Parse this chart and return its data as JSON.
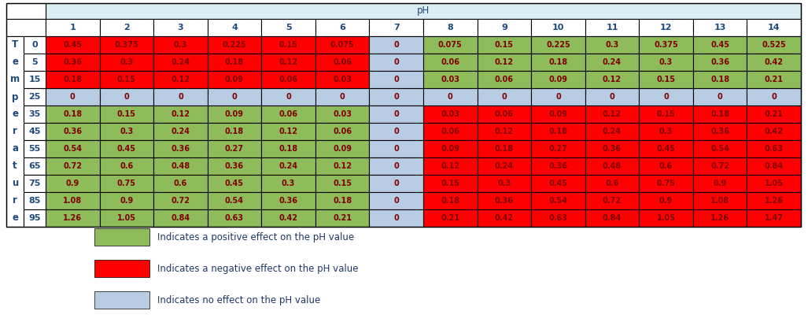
{
  "col_headers": [
    "1",
    "2",
    "3",
    "4",
    "5",
    "6",
    "7",
    "8",
    "9",
    "10",
    "11",
    "12",
    "13",
    "14"
  ],
  "row_headers": [
    "0",
    "5",
    "15",
    "25",
    "35",
    "45",
    "55",
    "65",
    "75",
    "85",
    "95"
  ],
  "values": [
    [
      0.45,
      0.375,
      0.3,
      0.225,
      0.15,
      0.075,
      0,
      0.075,
      0.15,
      0.225,
      0.3,
      0.375,
      0.45,
      0.525
    ],
    [
      0.36,
      0.3,
      0.24,
      0.18,
      0.12,
      0.06,
      0,
      0.06,
      0.12,
      0.18,
      0.24,
      0.3,
      0.36,
      0.42
    ],
    [
      0.18,
      0.15,
      0.12,
      0.09,
      0.06,
      0.03,
      0,
      0.03,
      0.06,
      0.09,
      0.12,
      0.15,
      0.18,
      0.21
    ],
    [
      0,
      0,
      0,
      0,
      0,
      0,
      0,
      0,
      0,
      0,
      0,
      0,
      0,
      0
    ],
    [
      0.18,
      0.15,
      0.12,
      0.09,
      0.06,
      0.03,
      0,
      0.03,
      0.06,
      0.09,
      0.12,
      0.15,
      0.18,
      0.21
    ],
    [
      0.36,
      0.3,
      0.24,
      0.18,
      0.12,
      0.06,
      0,
      0.06,
      0.12,
      0.18,
      0.24,
      0.3,
      0.36,
      0.42
    ],
    [
      0.54,
      0.45,
      0.36,
      0.27,
      0.18,
      0.09,
      0,
      0.09,
      0.18,
      0.27,
      0.36,
      0.45,
      0.54,
      0.63
    ],
    [
      0.72,
      0.6,
      0.48,
      0.36,
      0.24,
      0.12,
      0,
      0.12,
      0.24,
      0.36,
      0.48,
      0.6,
      0.72,
      0.84
    ],
    [
      0.9,
      0.75,
      0.6,
      0.45,
      0.3,
      0.15,
      0,
      0.15,
      0.3,
      0.45,
      0.6,
      0.75,
      0.9,
      1.05
    ],
    [
      1.08,
      0.9,
      0.72,
      0.54,
      0.36,
      0.18,
      0,
      0.18,
      0.36,
      0.54,
      0.72,
      0.9,
      1.08,
      1.26
    ],
    [
      1.26,
      1.05,
      0.84,
      0.63,
      0.42,
      0.21,
      0,
      0.21,
      0.42,
      0.63,
      0.84,
      1.05,
      1.26,
      1.47
    ]
  ],
  "cell_colors": [
    [
      "red",
      "red",
      "red",
      "red",
      "red",
      "red",
      "lightblue",
      "green",
      "green",
      "green",
      "green",
      "green",
      "green",
      "green"
    ],
    [
      "red",
      "red",
      "red",
      "red",
      "red",
      "red",
      "lightblue",
      "green",
      "green",
      "green",
      "green",
      "green",
      "green",
      "green"
    ],
    [
      "red",
      "red",
      "red",
      "red",
      "red",
      "red",
      "lightblue",
      "green",
      "green",
      "green",
      "green",
      "green",
      "green",
      "green"
    ],
    [
      "lightblue",
      "lightblue",
      "lightblue",
      "lightblue",
      "lightblue",
      "lightblue",
      "lightblue",
      "lightblue",
      "lightblue",
      "lightblue",
      "lightblue",
      "lightblue",
      "lightblue",
      "lightblue"
    ],
    [
      "green",
      "green",
      "green",
      "green",
      "green",
      "green",
      "lightblue",
      "red",
      "red",
      "red",
      "red",
      "red",
      "red",
      "red"
    ],
    [
      "green",
      "green",
      "green",
      "green",
      "green",
      "green",
      "lightblue",
      "red",
      "red",
      "red",
      "red",
      "red",
      "red",
      "red"
    ],
    [
      "green",
      "green",
      "green",
      "green",
      "green",
      "green",
      "lightblue",
      "red",
      "red",
      "red",
      "red",
      "red",
      "red",
      "red"
    ],
    [
      "green",
      "green",
      "green",
      "green",
      "green",
      "green",
      "lightblue",
      "red",
      "red",
      "red",
      "red",
      "red",
      "red",
      "red"
    ],
    [
      "green",
      "green",
      "green",
      "green",
      "green",
      "green",
      "lightblue",
      "red",
      "red",
      "red",
      "red",
      "red",
      "red",
      "red"
    ],
    [
      "green",
      "green",
      "green",
      "green",
      "green",
      "green",
      "lightblue",
      "red",
      "red",
      "red",
      "red",
      "red",
      "red",
      "red"
    ],
    [
      "green",
      "green",
      "green",
      "green",
      "green",
      "green",
      "lightblue",
      "red",
      "red",
      "red",
      "red",
      "red",
      "red",
      "red"
    ]
  ],
  "color_map": {
    "red": "#FF0000",
    "green": "#8FBC5A",
    "lightblue": "#B8CCE4"
  },
  "temp_letters": [
    "T",
    "e",
    "m",
    "p",
    "e",
    "r",
    "a",
    "t",
    "u",
    "r",
    "e"
  ],
  "ph_label": "pH",
  "legend": [
    {
      "color": "#8FBC5A",
      "text": "Indicates a positive effect on the pH value"
    },
    {
      "color": "#FF0000",
      "text": "Indicates a negative effect on the pH value"
    },
    {
      "color": "#B8CCE4",
      "text": "Indicates no effect on the pH value"
    }
  ],
  "ph_header_bg": "#DAEEF3",
  "header_text_color": "#1F497D",
  "cell_text_color": "#7F0000",
  "row_text_color": "#1F497D",
  "temp_text_color": "#1F497D",
  "legend_text_color": "#1F3864",
  "border_color": "#000000",
  "bg_color": "#FFFFFF"
}
